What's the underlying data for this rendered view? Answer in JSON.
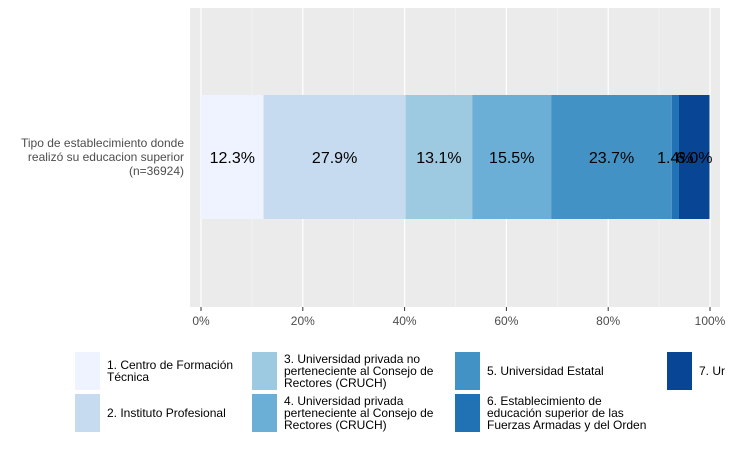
{
  "chart_data": {
    "type": "bar",
    "orientation": "horizontal",
    "stacked": true,
    "category_label_lines": [
      "Tipo de establecimiento donde",
      "realizó su educacion superior",
      "(n=36924)"
    ],
    "series": [
      {
        "name_lines": [
          "1. Centro de Formación",
          "Técnica"
        ],
        "value": 12.3,
        "label": "12.3%",
        "color": "#eff3ff"
      },
      {
        "name_lines": [
          "2. Instituto Profesional"
        ],
        "value": 27.9,
        "label": "27.9%",
        "color": "#c6dbef"
      },
      {
        "name_lines": [
          "3. Universidad privada no",
          "perteneciente al Consejo de",
          "Rectores (CRUCH)"
        ],
        "value": 13.1,
        "label": "13.1%",
        "color": "#9ecae1"
      },
      {
        "name_lines": [
          "4. Universidad privada",
          "perteneciente al Consejo de",
          "Rectores (CRUCH)"
        ],
        "value": 15.5,
        "label": "15.5%",
        "color": "#6baed6"
      },
      {
        "name_lines": [
          "5. Universidad Estatal"
        ],
        "value": 23.7,
        "label": "23.7%",
        "color": "#4292c6"
      },
      {
        "name_lines": [
          "6. Establecimiento de",
          "educación superior de las",
          "Fuerzas Armadas y del Orden"
        ],
        "value": 1.4,
        "label": "1.4%",
        "color": "#2171b5"
      },
      {
        "name_lines": [
          "7. Ur"
        ],
        "value": 6.0,
        "label": "6.0%",
        "color": "#084594"
      }
    ],
    "xaxis": {
      "ticks": [
        0,
        20,
        40,
        60,
        80,
        100
      ],
      "tick_labels": [
        "0%",
        "20%",
        "40%",
        "60%",
        "80%",
        "100%"
      ],
      "range": [
        0,
        100
      ]
    },
    "grid": true,
    "legend_position": "bottom"
  }
}
